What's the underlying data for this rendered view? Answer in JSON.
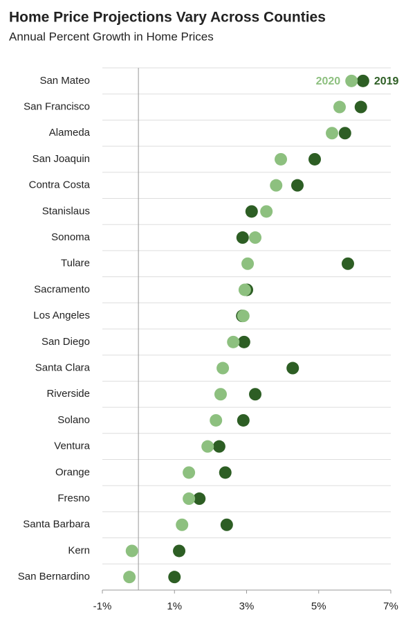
{
  "chart_data": {
    "type": "dot",
    "title": "Home Price Projections Vary Across Counties",
    "subtitle": "Annual Percent Growth in Home Prices",
    "categories": [
      "San Mateo",
      "San Francisco",
      "Alameda",
      "San Joaquin",
      "Contra Costa",
      "Stanislaus",
      "Sonoma",
      "Tulare",
      "Sacramento",
      "Los Angeles",
      "San Diego",
      "Santa Clara",
      "Riverside",
      "Solano",
      "Ventura",
      "Orange",
      "Fresno",
      "Santa Barbara",
      "Kern",
      "San Bernardino"
    ],
    "series": [
      {
        "name": "2019",
        "color": "#2d5e24",
        "values": [
          6.23,
          6.17,
          5.73,
          4.89,
          4.41,
          3.14,
          2.89,
          5.81,
          3.01,
          2.88,
          2.93,
          4.28,
          3.24,
          2.91,
          2.24,
          2.41,
          1.69,
          2.45,
          1.13,
          1.0
        ]
      },
      {
        "name": "2020",
        "color": "#8dc07f",
        "values": [
          5.91,
          5.58,
          5.37,
          3.95,
          3.82,
          3.55,
          3.24,
          3.03,
          2.95,
          2.91,
          2.63,
          2.34,
          2.28,
          2.15,
          1.92,
          1.4,
          1.4,
          1.21,
          -0.18,
          -0.25
        ]
      }
    ],
    "xlim": [
      -1,
      7
    ],
    "xticks": [
      {
        "value": -1,
        "label": "-1%"
      },
      {
        "value": 1,
        "label": "1%"
      },
      {
        "value": 3,
        "label": "3%"
      },
      {
        "value": 5,
        "label": "5%"
      },
      {
        "value": 7,
        "label": "7%"
      }
    ],
    "grid": true
  }
}
